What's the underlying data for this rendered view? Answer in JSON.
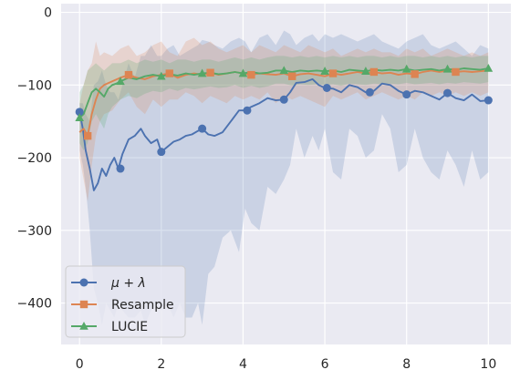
{
  "chart_data": {
    "type": "line",
    "title": "",
    "xlabel": "",
    "ylabel": "",
    "xlim": [
      -0.45,
      10.55
    ],
    "ylim": [
      -457,
      12
    ],
    "xticks": [
      0,
      2,
      4,
      6,
      8,
      10
    ],
    "xtick_labels": [
      "0",
      "2",
      "4",
      "6",
      "8",
      "10"
    ],
    "yticks": [
      0,
      -100,
      -200,
      -300,
      -400
    ],
    "ytick_labels": [
      "0",
      "−100",
      "−200",
      "−300",
      "−400"
    ],
    "grid": true,
    "legend_position": "lower-left",
    "series": [
      {
        "name": "μ + λ",
        "legend_label": "μ + λ",
        "color": "#4c72b0",
        "marker": "circle",
        "x": [
          0,
          0.08,
          0.15,
          0.25,
          0.35,
          0.45,
          0.55,
          0.65,
          0.75,
          0.85,
          0.95,
          1.05,
          1.2,
          1.35,
          1.5,
          1.6,
          1.75,
          1.9,
          2.0,
          2.15,
          2.3,
          2.45,
          2.6,
          2.75,
          2.9,
          3.0,
          3.15,
          3.3,
          3.5,
          3.7,
          3.9,
          4.05,
          4.2,
          4.4,
          4.6,
          4.8,
          5.0,
          5.15,
          5.3,
          5.5,
          5.7,
          5.85,
          6.0,
          6.2,
          6.4,
          6.6,
          6.8,
          7.0,
          7.2,
          7.4,
          7.6,
          7.8,
          8.0,
          8.2,
          8.4,
          8.6,
          8.8,
          9.0,
          9.2,
          9.4,
          9.6,
          9.8,
          10.0
        ],
        "y": [
          -137,
          -160,
          -190,
          -215,
          -245,
          -235,
          -215,
          -225,
          -210,
          -200,
          -215,
          -195,
          -175,
          -170,
          -160,
          -170,
          -180,
          -175,
          -192,
          -185,
          -178,
          -175,
          -170,
          -168,
          -163,
          -160,
          -168,
          -170,
          -165,
          -150,
          -135,
          -135,
          -130,
          -125,
          -118,
          -121,
          -120,
          -110,
          -97,
          -96,
          -92,
          -100,
          -104,
          -105,
          -110,
          -100,
          -103,
          -110,
          -108,
          -98,
          -100,
          -108,
          -113,
          -108,
          -110,
          -115,
          -120,
          -111,
          -118,
          -121,
          -113,
          -122,
          -121
        ],
        "band_upper": [
          -125,
          -125,
          -140,
          -150,
          -100,
          -95,
          -80,
          -100,
          -110,
          -110,
          -120,
          -100,
          -70,
          -90,
          -60,
          -60,
          -45,
          -60,
          -60,
          -50,
          -45,
          -60,
          -55,
          -50,
          -45,
          -38,
          -40,
          -45,
          -50,
          -40,
          -35,
          -40,
          -55,
          -35,
          -30,
          -45,
          -25,
          -30,
          -45,
          -35,
          -30,
          -40,
          -30,
          -35,
          -30,
          -35,
          -40,
          -35,
          -30,
          -40,
          -45,
          -50,
          -40,
          -35,
          -30,
          -45,
          -50,
          -45,
          -40,
          -50,
          -60,
          -45,
          -50
        ],
        "band_lower": [
          -190,
          -210,
          -240,
          -300,
          -380,
          -400,
          -430,
          -400,
          -410,
          -420,
          -400,
          -410,
          -420,
          -420,
          -410,
          -430,
          -410,
          -400,
          -410,
          -400,
          -420,
          -400,
          -420,
          -420,
          -400,
          -430,
          -360,
          -350,
          -310,
          -300,
          -330,
          -270,
          -290,
          -300,
          -240,
          -250,
          -230,
          -210,
          -160,
          -200,
          -170,
          -190,
          -160,
          -220,
          -230,
          -160,
          -170,
          -200,
          -190,
          -140,
          -160,
          -220,
          -210,
          -160,
          -200,
          -220,
          -230,
          -190,
          -210,
          -240,
          -190,
          -230,
          -220
        ],
        "marker_x": [
          0,
          1.0,
          2.0,
          3.0,
          4.1,
          5.0,
          6.05,
          7.1,
          8.0,
          9.0,
          10.0
        ],
        "marker_y": [
          -137,
          -215,
          -192,
          -160,
          -135,
          -120,
          -104,
          -110,
          -113,
          -111,
          -121
        ]
      },
      {
        "name": "Resample",
        "legend_label": "Resample",
        "color": "#dd8452",
        "marker": "square",
        "x": [
          0,
          0.1,
          0.2,
          0.3,
          0.4,
          0.5,
          0.6,
          0.8,
          1.0,
          1.2,
          1.4,
          1.6,
          1.8,
          2.0,
          2.2,
          2.4,
          2.6,
          2.8,
          3.0,
          3.2,
          3.4,
          3.6,
          3.8,
          4.0,
          4.2,
          4.4,
          4.6,
          4.8,
          5.0,
          5.2,
          5.4,
          5.6,
          5.8,
          6.0,
          6.2,
          6.4,
          6.6,
          6.8,
          7.0,
          7.2,
          7.4,
          7.6,
          7.8,
          8.0,
          8.2,
          8.4,
          8.6,
          8.8,
          9.0,
          9.2,
          9.4,
          9.6,
          9.8,
          10.0
        ],
        "y": [
          -165,
          -160,
          -170,
          -140,
          -120,
          -105,
          -100,
          -95,
          -90,
          -86,
          -90,
          -92,
          -88,
          -86,
          -84,
          -90,
          -86,
          -84,
          -86,
          -83,
          -86,
          -84,
          -82,
          -84,
          -86,
          -84,
          -85,
          -86,
          -84,
          -88,
          -85,
          -84,
          -86,
          -88,
          -84,
          -86,
          -84,
          -82,
          -84,
          -82,
          -84,
          -83,
          -86,
          -84,
          -85,
          -82,
          -80,
          -82,
          -80,
          -82,
          -81,
          -82,
          -81,
          -80
        ],
        "band_upper": [
          -125,
          -100,
          -80,
          -70,
          -40,
          -60,
          -55,
          -60,
          -50,
          -45,
          -60,
          -55,
          -45,
          -40,
          -55,
          -60,
          -40,
          -35,
          -45,
          -40,
          -50,
          -55,
          -50,
          -45,
          -55,
          -45,
          -50,
          -55,
          -45,
          -50,
          -55,
          -45,
          -50,
          -55,
          -50,
          -60,
          -55,
          -50,
          -55,
          -50,
          -55,
          -55,
          -60,
          -50,
          -55,
          -50,
          -60,
          -55,
          -50,
          -55,
          -60,
          -55,
          -60,
          -55
        ],
        "band_lower": [
          -200,
          -230,
          -260,
          -210,
          -170,
          -150,
          -140,
          -135,
          -120,
          -110,
          -130,
          -140,
          -120,
          -130,
          -120,
          -120,
          -110,
          -115,
          -125,
          -115,
          -120,
          -125,
          -115,
          -120,
          -115,
          -120,
          -110,
          -125,
          -115,
          -120,
          -115,
          -120,
          -125,
          -130,
          -115,
          -120,
          -115,
          -110,
          -120,
          -115,
          -110,
          -115,
          -120,
          -115,
          -120,
          -110,
          -115,
          -110,
          -115,
          -110,
          -115,
          -110,
          -115,
          -110
        ],
        "marker_x": [
          0.2,
          1.2,
          2.2,
          3.2,
          4.2,
          5.2,
          6.2,
          7.2,
          8.2,
          9.2
        ],
        "marker_y": [
          -170,
          -86,
          -84,
          -83,
          -86,
          -88,
          -84,
          -82,
          -85,
          -82
        ]
      },
      {
        "name": "LUCIE",
        "legend_label": "LUCIE",
        "color": "#55a868",
        "marker": "triangle",
        "x": [
          0,
          0.1,
          0.2,
          0.3,
          0.4,
          0.5,
          0.6,
          0.7,
          0.8,
          0.9,
          1.0,
          1.2,
          1.4,
          1.6,
          1.8,
          2.0,
          2.2,
          2.4,
          2.6,
          2.8,
          3.0,
          3.2,
          3.4,
          3.6,
          3.8,
          4.0,
          4.2,
          4.4,
          4.6,
          4.8,
          5.0,
          5.2,
          5.4,
          5.6,
          5.8,
          6.0,
          6.2,
          6.4,
          6.6,
          6.8,
          7.0,
          7.2,
          7.4,
          7.6,
          7.8,
          8.0,
          8.2,
          8.4,
          8.6,
          8.8,
          9.0,
          9.2,
          9.4,
          9.6,
          9.8,
          10.0
        ],
        "y": [
          -145,
          -140,
          -125,
          -110,
          -105,
          -110,
          -116,
          -105,
          -100,
          -98,
          -95,
          -90,
          -92,
          -88,
          -86,
          -88,
          -85,
          -87,
          -84,
          -86,
          -84,
          -83,
          -85,
          -84,
          -82,
          -84,
          -82,
          -84,
          -83,
          -80,
          -80,
          -82,
          -80,
          -81,
          -80,
          -81,
          -80,
          -82,
          -79,
          -80,
          -81,
          -79,
          -80,
          -79,
          -80,
          -78,
          -80,
          -79,
          -78,
          -80,
          -78,
          -79,
          -77,
          -78,
          -79,
          -77
        ],
        "band_upper": [
          -110,
          -100,
          -80,
          -75,
          -70,
          -75,
          -80,
          -75,
          -70,
          -70,
          -70,
          -65,
          -70,
          -65,
          -68,
          -65,
          -70,
          -65,
          -65,
          -68,
          -65,
          -65,
          -68,
          -65,
          -62,
          -65,
          -62,
          -65,
          -62,
          -60,
          -60,
          -62,
          -60,
          -62,
          -60,
          -62,
          -60,
          -62,
          -60,
          -62,
          -60,
          -60,
          -62,
          -60,
          -62,
          -60,
          -60,
          -62,
          -60,
          -62,
          -60,
          -62,
          -60,
          -62,
          -60,
          -60
        ],
        "band_lower": [
          -180,
          -190,
          -180,
          -150,
          -140,
          -150,
          -160,
          -140,
          -130,
          -125,
          -120,
          -115,
          -118,
          -112,
          -108,
          -110,
          -105,
          -108,
          -104,
          -106,
          -104,
          -102,
          -104,
          -103,
          -100,
          -104,
          -101,
          -104,
          -102,
          -98,
          -98,
          -101,
          -99,
          -100,
          -99,
          -100,
          -99,
          -101,
          -98,
          -99,
          -100,
          -98,
          -99,
          -98,
          -99,
          -97,
          -99,
          -98,
          -97,
          -99,
          -97,
          -98,
          -96,
          -97,
          -98,
          -96
        ],
        "marker_x": [
          0,
          1.0,
          2.0,
          3.0,
          4.0,
          5.0,
          6.0,
          7.0,
          8.0,
          9.0,
          10.0
        ],
        "marker_y": [
          -145,
          -95,
          -88,
          -84,
          -84,
          -80,
          -81,
          -81,
          -78,
          -78,
          -77
        ]
      }
    ]
  }
}
